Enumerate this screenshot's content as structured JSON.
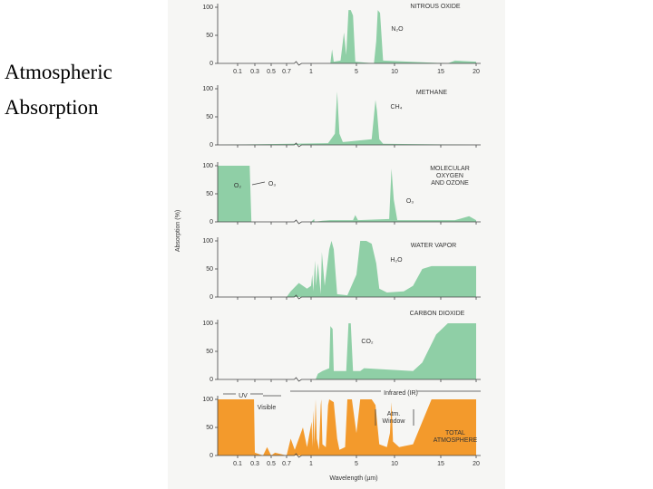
{
  "slide_title": "Atmospheric Absorption",
  "chart_data": [
    {
      "type": "area",
      "title_lines": [
        "NITROUS OXIDE"
      ],
      "annotations": [
        "N₂O"
      ],
      "xlim": [
        0,
        20
      ],
      "xticks": [
        0.1,
        0.3,
        0.5,
        0.7,
        1,
        5,
        10,
        15,
        20
      ],
      "ylim": [
        0,
        100
      ],
      "yticks": [
        0,
        50,
        100
      ],
      "series": [
        {
          "color": "#8fcfa6",
          "x": [
            0,
            2.7,
            2.85,
            3.0,
            3.6,
            3.9,
            4.1,
            4.3,
            4.5,
            4.7,
            4.9,
            7.3,
            7.6,
            7.8,
            8.1,
            8.5,
            16,
            17,
            20
          ],
          "values": [
            0,
            0,
            25,
            3,
            5,
            55,
            15,
            95,
            95,
            85,
            3,
            0,
            40,
            95,
            90,
            5,
            0,
            5,
            3
          ]
        }
      ]
    },
    {
      "type": "area",
      "title_lines": [
        "METHANE"
      ],
      "annotations": [
        "CH₄"
      ],
      "xlim": [
        0,
        20
      ],
      "ylim": [
        0,
        100
      ],
      "yticks": [
        0,
        50,
        100
      ],
      "series": [
        {
          "color": "#8fcfa6",
          "x": [
            0,
            2.5,
            3.1,
            3.3,
            3.5,
            3.8,
            7.0,
            7.5,
            7.7,
            8.0,
            8.5,
            20
          ],
          "values": [
            0,
            3,
            20,
            95,
            20,
            5,
            10,
            80,
            60,
            10,
            2,
            0
          ]
        }
      ]
    },
    {
      "type": "area",
      "title_lines": [
        "MOLECULAR",
        "OXYGEN",
        "AND OZONE"
      ],
      "annotations": [
        "O₂",
        "O₃",
        "O₃"
      ],
      "xlim": [
        0,
        20
      ],
      "ylim": [
        0,
        100
      ],
      "yticks": [
        0,
        50,
        100
      ],
      "series": [
        {
          "color": "#8fcfa6",
          "x": [
            0,
            0.02,
            0.24,
            0.26,
            1,
            1.27,
            1.3,
            2,
            2.7,
            4.7,
            4.9,
            5.2,
            9.3,
            9.6,
            9.9,
            10.3,
            17,
            19,
            20
          ],
          "values": [
            100,
            100,
            100,
            0,
            0,
            5,
            0,
            2,
            3,
            3,
            12,
            3,
            5,
            95,
            40,
            3,
            3,
            10,
            3
          ]
        }
      ]
    },
    {
      "type": "area",
      "title_lines": [
        "WATER VAPOR"
      ],
      "annotations": [
        "H₂O"
      ],
      "xlim": [
        0,
        20
      ],
      "ylim": [
        0,
        100
      ],
      "yticks": [
        0,
        50,
        100
      ],
      "series": [
        {
          "color": "#8fcfa6",
          "x": [
            0,
            0.7,
            0.75,
            0.85,
            0.95,
            1.0,
            1.1,
            1.2,
            1.35,
            1.45,
            1.6,
            1.85,
            1.95,
            2.2,
            2.6,
            2.8,
            3.0,
            3.3,
            4.2,
            5.0,
            5.5,
            6.3,
            7.0,
            7.6,
            8.0,
            9,
            11,
            12,
            13,
            14,
            20
          ],
          "values": [
            0,
            0,
            10,
            25,
            15,
            20,
            40,
            10,
            65,
            20,
            60,
            5,
            80,
            20,
            85,
            100,
            85,
            5,
            3,
            40,
            100,
            100,
            95,
            60,
            15,
            8,
            10,
            20,
            50,
            55,
            55
          ]
        }
      ]
    },
    {
      "type": "area",
      "title_lines": [
        "CARBON DIOXIDE"
      ],
      "annotations": [
        "CO₂"
      ],
      "xlim": [
        0,
        20
      ],
      "ylim": [
        0,
        100
      ],
      "yticks": [
        0,
        50,
        100
      ],
      "series": [
        {
          "color": "#8fcfa6",
          "x": [
            0,
            1.4,
            1.6,
            2.0,
            2.6,
            2.7,
            2.9,
            3.0,
            4.1,
            4.3,
            4.5,
            4.7,
            5.5,
            6,
            12,
            13,
            14.5,
            16,
            17,
            20
          ],
          "values": [
            0,
            0,
            10,
            15,
            20,
            95,
            90,
            15,
            15,
            100,
            100,
            15,
            15,
            20,
            15,
            30,
            80,
            100,
            100,
            100
          ]
        }
      ]
    },
    {
      "type": "area",
      "title_lines": [
        "TOTAL",
        "ATMOSPHERE"
      ],
      "annotations": [
        "UV",
        "Visible",
        "Infrared (IR)",
        "Atm.",
        "Window"
      ],
      "y_label": "Absorption (%)",
      "x_label": "Wavelength (µm)",
      "xlim": [
        0,
        20
      ],
      "xticks": [
        0.1,
        0.3,
        0.5,
        0.7,
        1,
        5,
        10,
        15,
        20
      ],
      "ylim": [
        0,
        100
      ],
      "yticks": [
        0,
        50,
        100
      ],
      "series": [
        {
          "color": "#f39a2c",
          "x": [
            0,
            0.29,
            0.3,
            0.4,
            0.45,
            0.5,
            0.55,
            0.7,
            0.75,
            0.8,
            0.9,
            0.95,
            1.05,
            1.1,
            1.2,
            1.3,
            1.4,
            1.5,
            1.7,
            1.85,
            1.9,
            2.0,
            2.3,
            2.5,
            2.6,
            3.0,
            3.3,
            3.5,
            4.0,
            4.2,
            4.6,
            5.0,
            5.5,
            7.0,
            7.5,
            8.0,
            9.0,
            9.4,
            9.6,
            9.8,
            10.5,
            12,
            13,
            14,
            20
          ],
          "values": [
            100,
            100,
            5,
            0,
            15,
            0,
            5,
            0,
            30,
            10,
            50,
            15,
            60,
            15,
            80,
            20,
            100,
            30,
            10,
            90,
            100,
            20,
            15,
            90,
            100,
            95,
            30,
            10,
            15,
            100,
            100,
            40,
            100,
            100,
            90,
            20,
            15,
            40,
            95,
            25,
            15,
            20,
            60,
            100,
            100
          ]
        }
      ]
    }
  ]
}
